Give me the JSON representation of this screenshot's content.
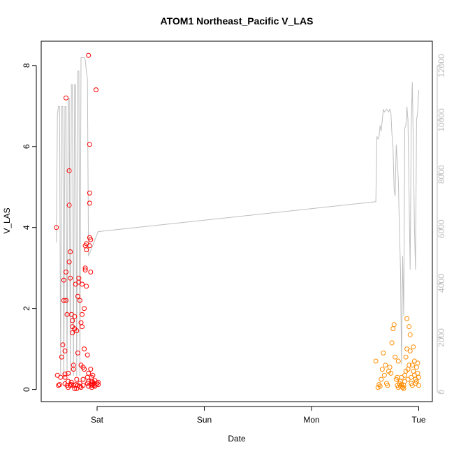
{
  "chart_data": {
    "type": "scatter",
    "title": "ATOM1 Northeast_Pacific V_LAS",
    "xlabel": "Date",
    "ylabel": "V_LAS",
    "x_ticks": [
      "Sat",
      "Sun",
      "Mon",
      "Tue"
    ],
    "ylim": [
      -0.3,
      8.6
    ],
    "y_ticks": [
      0,
      2,
      4,
      6,
      8
    ],
    "y2lim": [
      -350,
      12900
    ],
    "y2_ticks": [
      0,
      2000,
      4000,
      6000,
      8000,
      10000,
      12000
    ],
    "grid": false,
    "colors": {
      "series_1": "#ff0000",
      "series_2": "#ff8c00",
      "depth_line": "#bebebe",
      "axis": "#000000",
      "right_axis": "#bebebe"
    },
    "series": [
      {
        "values_x_days": [
          -0.38,
          -0.37,
          -0.36,
          -0.35,
          -0.34,
          -0.33,
          -0.32,
          -0.31,
          -0.31,
          -0.3,
          -0.3,
          -0.3,
          -0.3,
          -0.29,
          -0.29,
          -0.29,
          -0.28,
          -0.28,
          -0.27,
          -0.27,
          -0.27,
          -0.26,
          -0.26,
          -0.26,
          -0.25,
          -0.25,
          -0.25,
          -0.24,
          -0.24,
          -0.24,
          -0.23,
          -0.23,
          -0.23,
          -0.22,
          -0.22,
          -0.22,
          -0.21,
          -0.21,
          -0.21,
          -0.2,
          -0.2,
          -0.19,
          -0.19,
          -0.19,
          -0.18,
          -0.18,
          -0.18,
          -0.17,
          -0.17,
          -0.16,
          -0.16,
          -0.16,
          -0.15,
          -0.15,
          -0.15,
          -0.14,
          -0.14,
          -0.14,
          -0.13,
          -0.13,
          -0.13,
          -0.12,
          -0.12,
          -0.12,
          -0.11,
          -0.11,
          -0.11,
          -0.1,
          -0.1,
          -0.1,
          -0.09,
          -0.09,
          -0.09,
          -0.08,
          -0.08,
          -0.08,
          -0.08,
          -0.07,
          -0.07,
          -0.07,
          -0.07,
          -0.07,
          -0.06,
          -0.06,
          -0.06,
          -0.05,
          -0.05,
          -0.05,
          -0.05,
          -0.04,
          -0.04,
          -0.04,
          -0.03,
          -0.03,
          -0.02,
          -0.02,
          -0.01,
          0.0,
          0.01,
          0.01
        ],
        "values": [
          4.0,
          0.35,
          0.1,
          0.12,
          0.3,
          0.8,
          1.1,
          2.7,
          2.2,
          0.95,
          0.38,
          0.14,
          0.3,
          7.2,
          2.2,
          2.9,
          0.1,
          1.85,
          0.05,
          0.2,
          0.4,
          5.4,
          4.55,
          3.15,
          3.4,
          0.1,
          2.75,
          1.85,
          0.12,
          0.18,
          1.4,
          1.7,
          1.55,
          0.6,
          0.1,
          0.5,
          1.8,
          1.5,
          0.02,
          0.12,
          2.6,
          0.25,
          1.45,
          0.02,
          0.9,
          0.1,
          2.3,
          2.75,
          2.65,
          2.2,
          0.08,
          0.15,
          0.05,
          1.65,
          0.6,
          2.6,
          1.85,
          1.55,
          0.25,
          0.55,
          0.1,
          0.5,
          1.0,
          2.0,
          3.55,
          3.0,
          2.95,
          3.45,
          3.6,
          2.55,
          0.3,
          0.85,
          0.15,
          0.4,
          0.08,
          0.2,
          8.25,
          4.85,
          6.05,
          4.6,
          3.75,
          3.55,
          2.9,
          3.7,
          0.5,
          0.3,
          0.1,
          0.05,
          0.2,
          0.12,
          0.18,
          0.35,
          0.15,
          0.1,
          0.22,
          0.08,
          7.4,
          0.15,
          0.12,
          0.18
        ],
        "color": "#ff0000"
      },
      {
        "values_x_days": [
          2.6,
          2.62,
          2.63,
          2.64,
          2.65,
          2.66,
          2.67,
          2.68,
          2.69,
          2.7,
          2.71,
          2.72,
          2.73,
          2.74,
          2.75,
          2.76,
          2.77,
          2.78,
          2.79,
          2.8,
          2.8,
          2.81,
          2.81,
          2.82,
          2.83,
          2.83,
          2.84,
          2.84,
          2.85,
          2.85,
          2.86,
          2.86,
          2.87,
          2.87,
          2.88,
          2.88,
          2.89,
          2.89,
          2.9,
          2.9,
          2.91,
          2.91,
          2.92,
          2.92,
          2.93,
          2.93,
          2.94,
          2.94,
          2.95,
          2.95,
          2.96,
          2.96,
          2.97,
          2.97,
          2.98,
          2.98,
          2.99,
          2.99,
          3.0,
          3.0
        ],
        "values": [
          0.7,
          0.05,
          0.12,
          0.08,
          0.25,
          0.5,
          0.9,
          0.35,
          0.6,
          0.15,
          0.1,
          0.45,
          0.55,
          0.4,
          1.15,
          1.5,
          1.6,
          0.8,
          0.25,
          0.3,
          0.1,
          0.7,
          0.05,
          0.15,
          0.2,
          0.08,
          0.3,
          0.12,
          0.06,
          0.05,
          0.02,
          0.1,
          0.2,
          0.35,
          0.45,
          0.8,
          1.75,
          1.0,
          0.5,
          0.25,
          0.6,
          1.55,
          1.35,
          0.95,
          0.3,
          0.15,
          0.1,
          0.6,
          0.45,
          1.05,
          0.7,
          0.35,
          0.25,
          0.15,
          0.55,
          0.2,
          0.4,
          0.65,
          0.3,
          0.1
        ],
        "color": "#ff8c00"
      }
    ],
    "depth_line": {
      "x_days": [
        -0.38,
        -0.37,
        -0.36,
        -0.35,
        -0.34,
        -0.33,
        -0.32,
        -0.31,
        -0.3,
        -0.29,
        -0.28,
        -0.27,
        -0.26,
        -0.25,
        -0.24,
        -0.23,
        -0.22,
        -0.21,
        -0.2,
        -0.19,
        -0.18,
        -0.17,
        -0.16,
        -0.15,
        -0.14,
        -0.13,
        -0.12,
        -0.11,
        -0.1,
        -0.09,
        -0.08,
        -0.07,
        -0.06,
        -0.05,
        -0.04,
        -0.03,
        -0.02,
        -0.01,
        0.0,
        0.01,
        2.6,
        2.61,
        2.62,
        2.63,
        2.64,
        2.65,
        2.66,
        2.67,
        2.68,
        2.7,
        2.72,
        2.73,
        2.74,
        2.75,
        2.76,
        2.77,
        2.78,
        2.79,
        2.8,
        2.81,
        2.82,
        2.83,
        2.84,
        2.85,
        2.86,
        2.87,
        2.88,
        2.89,
        2.9,
        2.91,
        2.92,
        2.93,
        2.94,
        2.95,
        2.96,
        2.97,
        2.98,
        2.99,
        3.0
      ],
      "values": [
        5500,
        10200,
        10500,
        10500,
        600,
        10500,
        10500,
        500,
        10500,
        10500,
        600,
        10800,
        10800,
        600,
        11300,
        11300,
        600,
        11300,
        11300,
        600,
        11800,
        11800,
        600,
        12300,
        12300,
        12300,
        12300,
        12200,
        11800,
        11500,
        5000,
        5100,
        5200,
        5300,
        5400,
        5500,
        5600,
        5700,
        5800,
        5900,
        7000,
        9400,
        9300,
        9400,
        9800,
        9600,
        10000,
        10400,
        10300,
        10400,
        10300,
        10400,
        10300,
        9500,
        9000,
        7500,
        7200,
        9100,
        8500,
        7800,
        6000,
        4500,
        1000,
        5000,
        2800,
        9700,
        9800,
        10500,
        10000,
        7200,
        4500,
        9800,
        11400,
        9000,
        6000,
        4500,
        10000,
        10300,
        11100
      ],
      "color": "#bebebe"
    }
  }
}
